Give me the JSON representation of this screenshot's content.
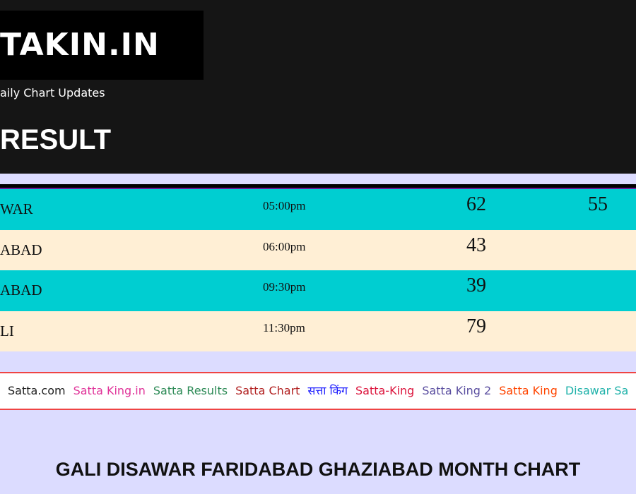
{
  "header": {
    "logo": "TAKIN.IN",
    "tagline": "aily Chart Updates",
    "heading": "RESULT"
  },
  "table": {
    "rows": [
      {
        "name": "WAR",
        "time": "05:00pm",
        "results": [
          62,
          55
        ]
      },
      {
        "name": "ABAD",
        "time": "06:00pm",
        "results": [
          43
        ]
      },
      {
        "name": "ABAD",
        "time": "09:30pm",
        "results": [
          39
        ]
      },
      {
        "name": "LI",
        "time": "11:30pm",
        "results": [
          79
        ]
      }
    ],
    "row_colors": [
      "#00ced1",
      "#ffefd5"
    ]
  },
  "links": [
    {
      "text": "Satta.com",
      "color": "#222222"
    },
    {
      "text": "Satta King.in",
      "color": "#e0359a"
    },
    {
      "text": "Satta Results",
      "color": "#2e8b57"
    },
    {
      "text": "Satta Chart",
      "color": "#b22222"
    },
    {
      "text": "सत्ता किंग",
      "color": "#1a1aff"
    },
    {
      "text": "Satta-King",
      "color": "#dc143c"
    },
    {
      "text": "Satta King 2",
      "color": "#5b4fa0"
    },
    {
      "text": "Satta King",
      "color": "#ff4500"
    },
    {
      "text": "Disawar Sa",
      "color": "#20b2aa"
    }
  ],
  "section_title": "GALI DISAWAR FARIDABAD GHAZIABAD MONTH CHART"
}
